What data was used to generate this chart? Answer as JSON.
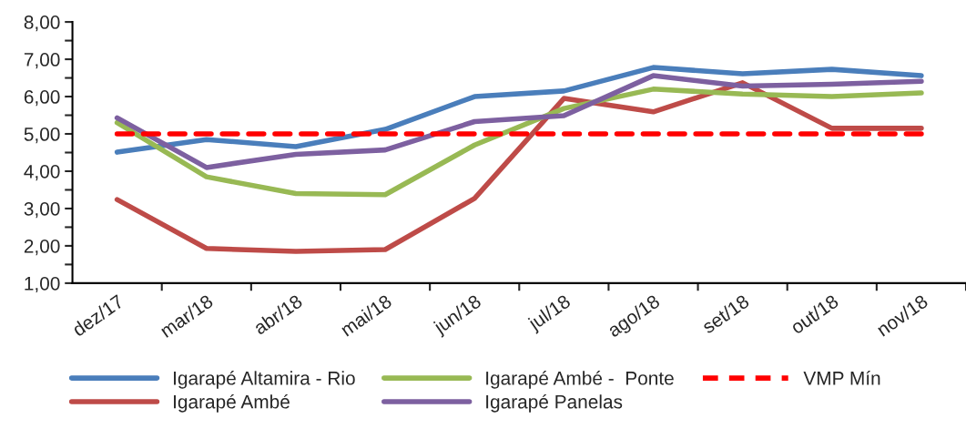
{
  "chart_data": {
    "type": "line",
    "categories": [
      "dez/17",
      "mar/18",
      "abr/18",
      "mai/18",
      "jun/18",
      "jul/18",
      "ago/18",
      "set/18",
      "out/18",
      "nov/18"
    ],
    "series": [
      {
        "name": "Igarapé Altamira - Rio",
        "color": "#4a7ebb",
        "values": [
          4.51,
          4.85,
          4.66,
          5.12,
          6.0,
          6.15,
          6.78,
          6.61,
          6.73,
          6.56
        ]
      },
      {
        "name": "Igarapé Ambé",
        "color": "#be4b48",
        "values": [
          3.24,
          1.93,
          1.85,
          1.9,
          3.27,
          5.95,
          5.59,
          6.37,
          5.15,
          5.15
        ]
      },
      {
        "name": "Igarapé Ambé -  Ponte",
        "color": "#98b954",
        "values": [
          5.3,
          3.85,
          3.4,
          3.37,
          4.7,
          5.68,
          6.2,
          6.07,
          6.0,
          6.1
        ]
      },
      {
        "name": "Igarapé Panelas",
        "color": "#7d60a0",
        "values": [
          5.43,
          4.1,
          4.45,
          4.57,
          5.33,
          5.49,
          6.56,
          6.28,
          6.33,
          6.41
        ]
      },
      {
        "name": "VMP Mín",
        "color": "#ff0000",
        "line_style": "dashed",
        "values": [
          5,
          5,
          5,
          5,
          5,
          5,
          5,
          5,
          5,
          5
        ]
      }
    ],
    "ylim": [
      1,
      8
    ],
    "yticks": [
      {
        "value": 1,
        "label": "1,00"
      },
      {
        "value": 1.5,
        "label": null
      },
      {
        "value": 2,
        "label": "2,00"
      },
      {
        "value": 2.5,
        "label": null
      },
      {
        "value": 3,
        "label": "3,00"
      },
      {
        "value": 3.5,
        "label": null
      },
      {
        "value": 4,
        "label": "4,00"
      },
      {
        "value": 4.5,
        "label": null
      },
      {
        "value": 5,
        "label": "5,00"
      },
      {
        "value": 5.5,
        "label": null
      },
      {
        "value": 6,
        "label": "6,00"
      },
      {
        "value": 6.5,
        "label": null
      },
      {
        "value": 7,
        "label": "7,00"
      },
      {
        "value": 7.5,
        "label": null
      },
      {
        "value": 8,
        "label": "8,00"
      }
    ],
    "grid": false,
    "legend": "bottom",
    "line_style": "solid",
    "marker": "none"
  }
}
